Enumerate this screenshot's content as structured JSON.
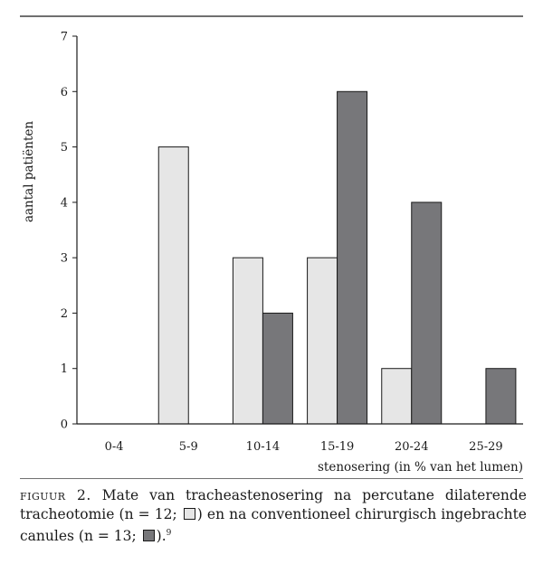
{
  "chart_data": {
    "type": "bar",
    "categories": [
      "0-4",
      "5-9",
      "10-14",
      "15-19",
      "20-24",
      "25-29"
    ],
    "series": [
      {
        "values": [
          0,
          5,
          3,
          3,
          1,
          0
        ],
        "color": "#e6e6e6"
      },
      {
        "values": [
          0,
          0,
          2,
          6,
          4,
          1
        ],
        "color": "#77777a"
      }
    ],
    "yticks": [
      0,
      1,
      2,
      3,
      4,
      5,
      6,
      7
    ],
    "ylim": [
      0,
      7
    ],
    "ylabel": "aantal patiënten",
    "xlabel": "stenosering (in % van het lumen)",
    "grid": false,
    "colors": {
      "edge": "#1a1a1a",
      "light": "#e6e6e6",
      "dark": "#77777a"
    }
  },
  "caption": {
    "fig_label": "figuur 2.",
    "part1": "Mate van tracheastenosering na percutane dilaterende tracheotomie (n = 12;",
    "part2": ") en na conventioneel chirurgisch ingebrachte canules (n = 13;",
    "part3": ").",
    "ref": "9"
  }
}
